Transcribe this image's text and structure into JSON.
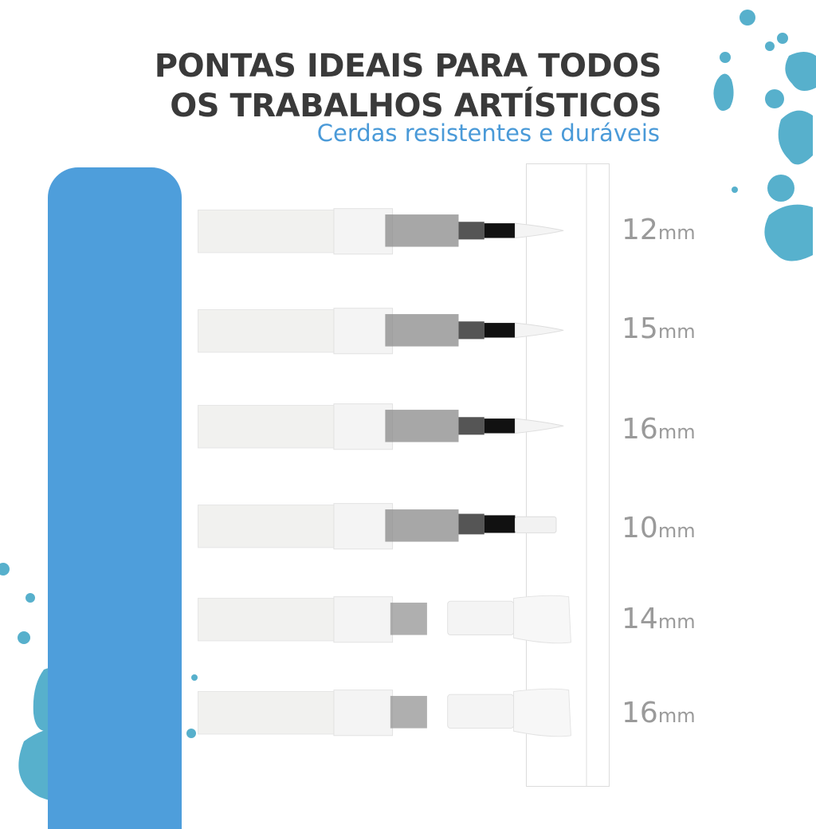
{
  "header": {
    "title_line1": "PONTAS IDEAIS PARA TODOS",
    "title_line2": "OS TRABALHOS ARTÍSTICOS",
    "subtitle": "Cerdas resistentes e duráveis"
  },
  "colors": {
    "accent_blue": "#4e9edb",
    "subtitle_blue": "#4a9ad8",
    "title_dark": "#3a3a3a",
    "label_gray": "#9a9a9a",
    "splash_teal": "#3aa3c4"
  },
  "brushes": [
    {
      "num": "12",
      "unit": "mm",
      "tip": "round-pointed"
    },
    {
      "num": "15",
      "unit": "mm",
      "tip": "round-pointed"
    },
    {
      "num": "16",
      "unit": "mm",
      "tip": "round-pointed"
    },
    {
      "num": "10",
      "unit": "mm",
      "tip": "flat-short"
    },
    {
      "num": "14",
      "unit": "mm",
      "tip": "flat-wide"
    },
    {
      "num": "16",
      "unit": "mm",
      "tip": "flat-wide"
    }
  ]
}
